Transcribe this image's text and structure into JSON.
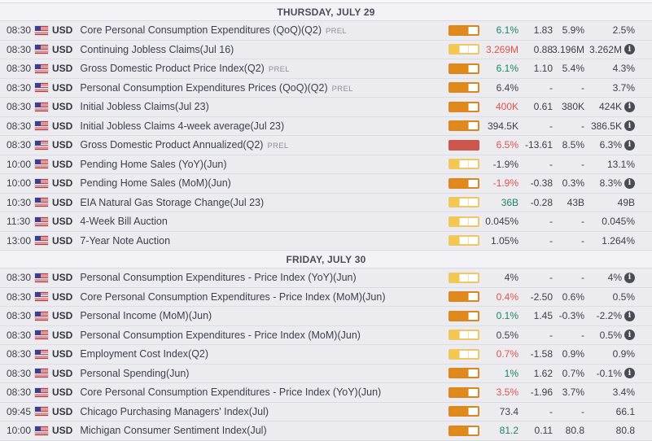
{
  "colors": {
    "green": "#1d8567",
    "red": "#df5349",
    "neutral": "#3f4047",
    "impact_low": "#f4c84e",
    "impact_medium": "#e08a1c",
    "impact_high": "#cd564c",
    "info_icon_bg": "#4b4b54"
  },
  "icons": {
    "flag": "us-flag",
    "info": "i"
  },
  "sections": [
    {
      "title": "THURSDAY, JULY 29",
      "rows": [
        {
          "time": "08:30",
          "currency": "USD",
          "name": "Core Personal Consumption Expenditures (QoQ)(Q2)",
          "prel": "PREL",
          "impact": "medium",
          "actual": "6.1%",
          "actual_color": "green",
          "deviation": "1.83",
          "consensus": "5.9%",
          "previous": "2.5%",
          "info": false
        },
        {
          "time": "08:30",
          "currency": "USD",
          "name": "Continuing Jobless Claims(Jul 16)",
          "prel": "",
          "impact": "low",
          "actual": "3.269M",
          "actual_color": "red",
          "deviation": "0.88",
          "consensus": "3.196M",
          "previous": "3.262M",
          "info": true
        },
        {
          "time": "08:30",
          "currency": "USD",
          "name": "Gross Domestic Product Price Index(Q2)",
          "prel": "PREL",
          "impact": "medium",
          "actual": "6.1%",
          "actual_color": "green",
          "deviation": "1.10",
          "consensus": "5.4%",
          "previous": "4.3%",
          "info": false
        },
        {
          "time": "08:30",
          "currency": "USD",
          "name": "Personal Consumption Expenditures Prices (QoQ)(Q2)",
          "prel": "PREL",
          "impact": "medium",
          "actual": "6.4%",
          "actual_color": "neutral",
          "deviation": "-",
          "consensus": "-",
          "previous": "3.7%",
          "info": false
        },
        {
          "time": "08:30",
          "currency": "USD",
          "name": "Initial Jobless Claims(Jul 23)",
          "prel": "",
          "impact": "medium",
          "actual": "400K",
          "actual_color": "red",
          "deviation": "0.61",
          "consensus": "380K",
          "previous": "424K",
          "info": true
        },
        {
          "time": "08:30",
          "currency": "USD",
          "name": "Initial Jobless Claims 4-week average(Jul 23)",
          "prel": "",
          "impact": "medium",
          "actual": "394.5K",
          "actual_color": "neutral",
          "deviation": "-",
          "consensus": "-",
          "previous": "386.5K",
          "info": true
        },
        {
          "time": "08:30",
          "currency": "USD",
          "name": "Gross Domestic Product Annualized(Q2)",
          "prel": "PREL",
          "impact": "high",
          "actual": "6.5%",
          "actual_color": "red",
          "deviation": "-13.61",
          "consensus": "8.5%",
          "previous": "6.3%",
          "info": true
        },
        {
          "time": "10:00",
          "currency": "USD",
          "name": "Pending Home Sales (YoY)(Jun)",
          "prel": "",
          "impact": "low",
          "actual": "-1.9%",
          "actual_color": "neutral",
          "deviation": "-",
          "consensus": "-",
          "previous": "13.1%",
          "info": false
        },
        {
          "time": "10:00",
          "currency": "USD",
          "name": "Pending Home Sales (MoM)(Jun)",
          "prel": "",
          "impact": "medium",
          "actual": "-1.9%",
          "actual_color": "red",
          "deviation": "-0.38",
          "consensus": "0.3%",
          "previous": "8.3%",
          "info": true
        },
        {
          "time": "10:30",
          "currency": "USD",
          "name": "EIA Natural Gas Storage Change(Jul 23)",
          "prel": "",
          "impact": "low",
          "actual": "36B",
          "actual_color": "green",
          "deviation": "-0.28",
          "consensus": "43B",
          "previous": "49B",
          "info": false
        },
        {
          "time": "11:30",
          "currency": "USD",
          "name": "4-Week Bill Auction",
          "prel": "",
          "impact": "low",
          "actual": "0.045%",
          "actual_color": "neutral",
          "deviation": "-",
          "consensus": "-",
          "previous": "0.045%",
          "info": false
        },
        {
          "time": "13:00",
          "currency": "USD",
          "name": "7-Year Note Auction",
          "prel": "",
          "impact": "low",
          "actual": "1.05%",
          "actual_color": "neutral",
          "deviation": "-",
          "consensus": "-",
          "previous": "1.264%",
          "info": false
        }
      ]
    },
    {
      "title": "FRIDAY, JULY 30",
      "rows": [
        {
          "time": "08:30",
          "currency": "USD",
          "name": "Personal Consumption Expenditures - Price Index (YoY)(Jun)",
          "prel": "",
          "impact": "low",
          "actual": "4%",
          "actual_color": "neutral",
          "deviation": "-",
          "consensus": "-",
          "previous": "4%",
          "info": true
        },
        {
          "time": "08:30",
          "currency": "USD",
          "name": "Core Personal Consumption Expenditures - Price Index (MoM)(Jun)",
          "prel": "",
          "impact": "medium",
          "actual": "0.4%",
          "actual_color": "red",
          "deviation": "-2.50",
          "consensus": "0.6%",
          "previous": "0.5%",
          "info": false
        },
        {
          "time": "08:30",
          "currency": "USD",
          "name": "Personal Income (MoM)(Jun)",
          "prel": "",
          "impact": "medium",
          "actual": "0.1%",
          "actual_color": "green",
          "deviation": "1.45",
          "consensus": "-0.3%",
          "previous": "-2.2%",
          "info": true
        },
        {
          "time": "08:30",
          "currency": "USD",
          "name": "Personal Consumption Expenditures - Price Index (MoM)(Jun)",
          "prel": "",
          "impact": "low",
          "actual": "0.5%",
          "actual_color": "neutral",
          "deviation": "-",
          "consensus": "-",
          "previous": "0.5%",
          "info": true
        },
        {
          "time": "08:30",
          "currency": "USD",
          "name": "Employment Cost Index(Q2)",
          "prel": "",
          "impact": "low",
          "actual": "0.7%",
          "actual_color": "red",
          "deviation": "-1.58",
          "consensus": "0.9%",
          "previous": "0.9%",
          "info": false
        },
        {
          "time": "08:30",
          "currency": "USD",
          "name": "Personal Spending(Jun)",
          "prel": "",
          "impact": "medium",
          "actual": "1%",
          "actual_color": "green",
          "deviation": "1.62",
          "consensus": "0.7%",
          "previous": "-0.1%",
          "info": true
        },
        {
          "time": "08:30",
          "currency": "USD",
          "name": "Core Personal Consumption Expenditures - Price Index (YoY)(Jun)",
          "prel": "",
          "impact": "medium",
          "actual": "3.5%",
          "actual_color": "red",
          "deviation": "-1.96",
          "consensus": "3.7%",
          "previous": "3.4%",
          "info": false
        },
        {
          "time": "09:45",
          "currency": "USD",
          "name": "Chicago Purchasing Managers' Index(Jul)",
          "prel": "",
          "impact": "medium",
          "actual": "73.4",
          "actual_color": "neutral",
          "deviation": "-",
          "consensus": "-",
          "previous": "66.1",
          "info": false
        },
        {
          "time": "10:00",
          "currency": "USD",
          "name": "Michigan Consumer Sentiment Index(Jul)",
          "prel": "",
          "impact": "medium",
          "actual": "81.2",
          "actual_color": "green",
          "deviation": "0.11",
          "consensus": "80.8",
          "previous": "80.8",
          "info": false
        }
      ]
    }
  ]
}
